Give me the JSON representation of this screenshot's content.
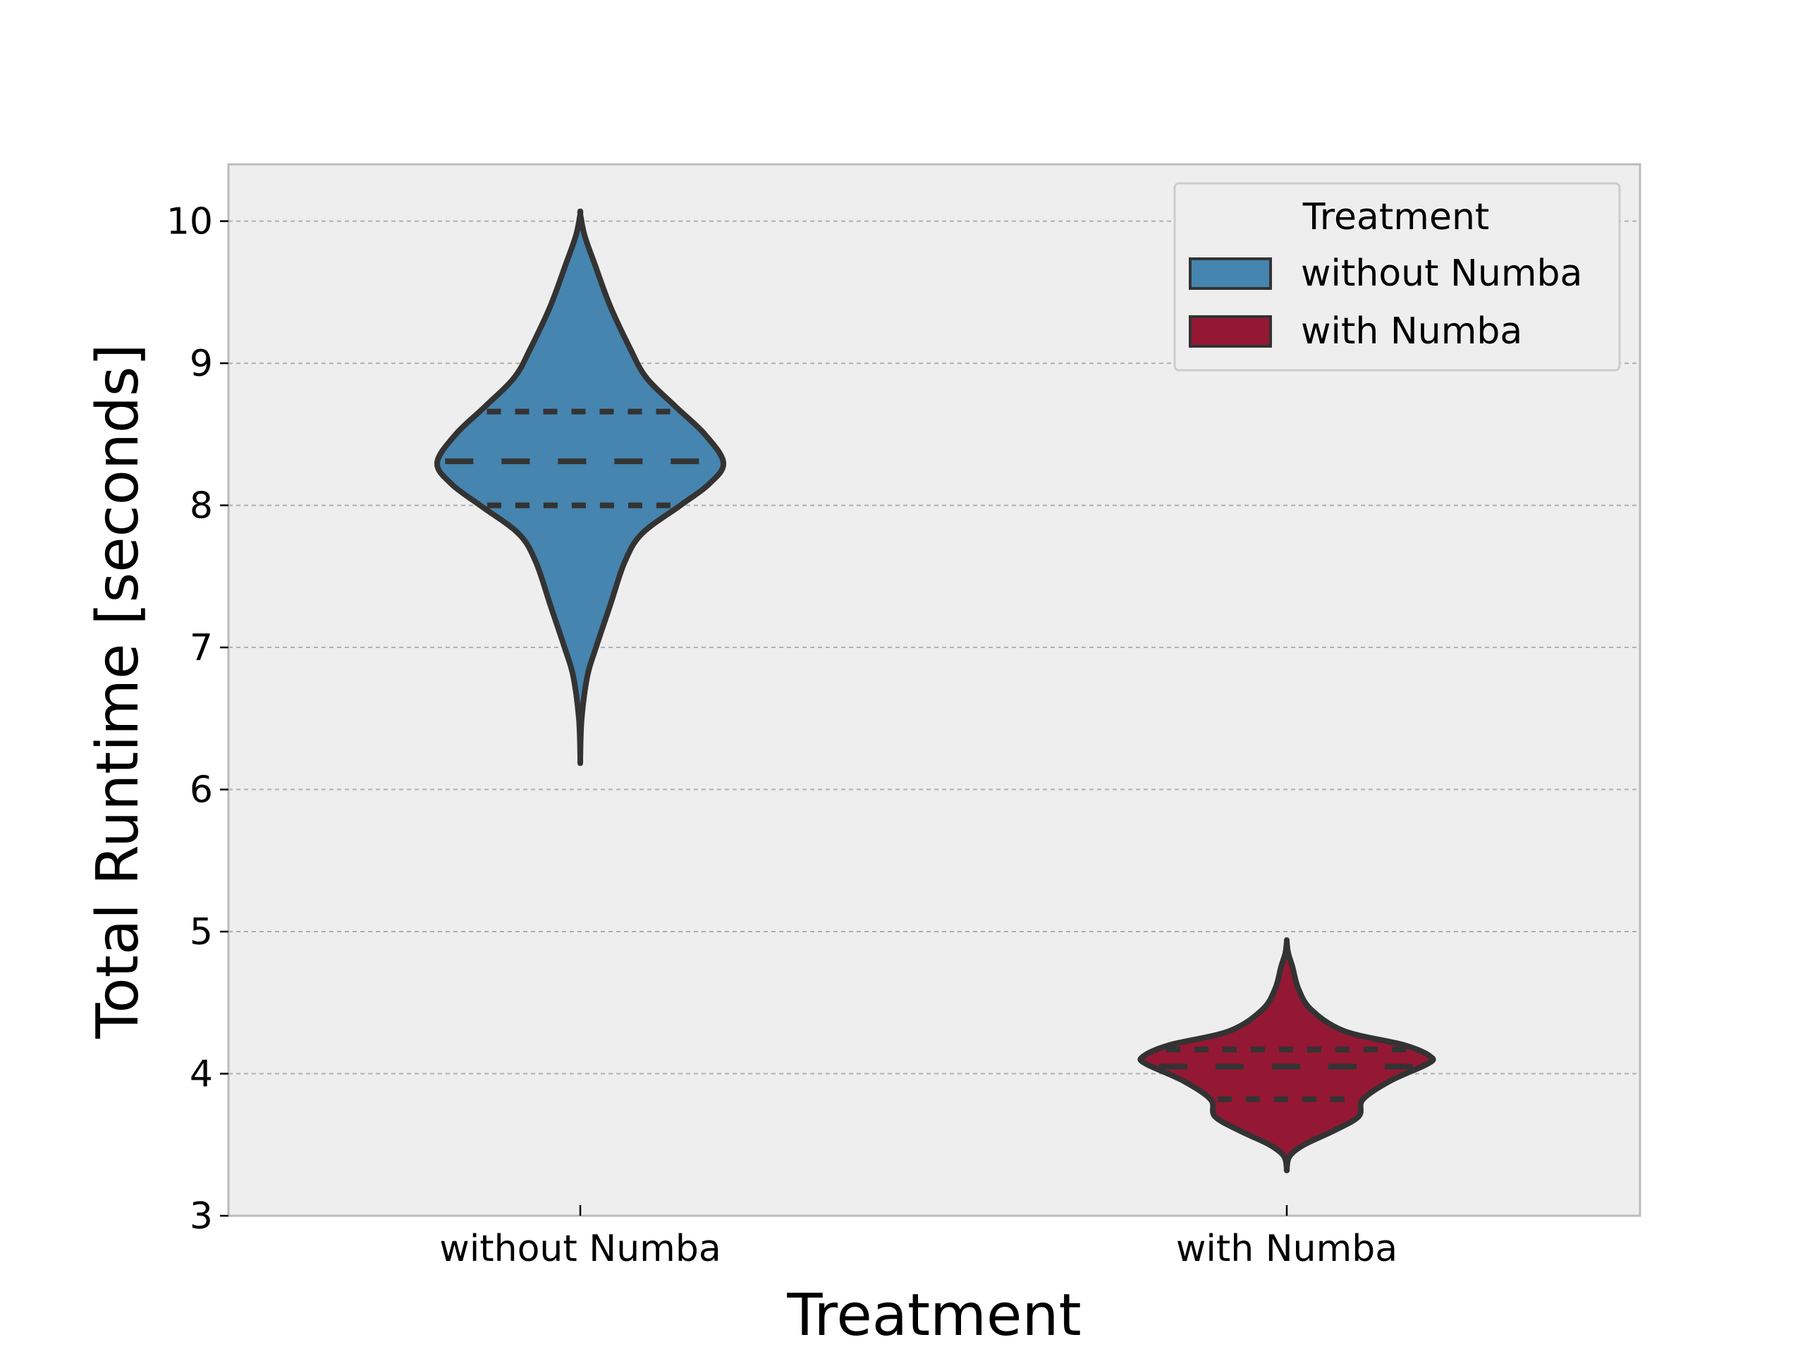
{
  "chart_data": {
    "type": "violin",
    "title": "",
    "xlabel": "Treatment",
    "ylabel": "Total Runtime [seconds]",
    "categories": [
      "without Numba",
      "with Numba"
    ],
    "ylim": [
      3,
      10.4
    ],
    "yticks": [
      "3",
      "4",
      "5",
      "6",
      "7",
      "8",
      "9",
      "10"
    ],
    "grid": "horizontal dashed",
    "legend": {
      "title": "Treatment",
      "placement": "top-right",
      "entries": [
        {
          "label": "without Numba",
          "color": "#4685af"
        },
        {
          "label": "with Numba",
          "color": "#941833"
        }
      ]
    },
    "series": [
      {
        "name": "without Numba",
        "color": "#4685af",
        "min": 6.22,
        "max": 10.05,
        "q1": 8.0,
        "median": 8.31,
        "q3": 8.66,
        "density_profile": [
          [
            6.22,
            0.0
          ],
          [
            6.5,
            0.01
          ],
          [
            6.8,
            0.05
          ],
          [
            7.0,
            0.11
          ],
          [
            7.3,
            0.21
          ],
          [
            7.6,
            0.31
          ],
          [
            7.8,
            0.43
          ],
          [
            8.0,
            0.7
          ],
          [
            8.15,
            0.9
          ],
          [
            8.3,
            1.0
          ],
          [
            8.5,
            0.87
          ],
          [
            8.7,
            0.66
          ],
          [
            8.9,
            0.46
          ],
          [
            9.1,
            0.35
          ],
          [
            9.4,
            0.21
          ],
          [
            9.7,
            0.1
          ],
          [
            9.9,
            0.03
          ],
          [
            10.05,
            0.0
          ]
        ]
      },
      {
        "name": "with Numba",
        "color": "#941833",
        "min": 3.33,
        "max": 4.93,
        "q1": 3.82,
        "median": 4.05,
        "q3": 4.17,
        "density_profile": [
          [
            3.33,
            0.0
          ],
          [
            3.42,
            0.02
          ],
          [
            3.5,
            0.12
          ],
          [
            3.6,
            0.33
          ],
          [
            3.7,
            0.5
          ],
          [
            3.82,
            0.53
          ],
          [
            3.95,
            0.72
          ],
          [
            4.07,
            0.98
          ],
          [
            4.12,
            1.0
          ],
          [
            4.2,
            0.82
          ],
          [
            4.3,
            0.4
          ],
          [
            4.45,
            0.17
          ],
          [
            4.6,
            0.08
          ],
          [
            4.75,
            0.04
          ],
          [
            4.85,
            0.01
          ],
          [
            4.93,
            0.0
          ]
        ]
      }
    ]
  }
}
